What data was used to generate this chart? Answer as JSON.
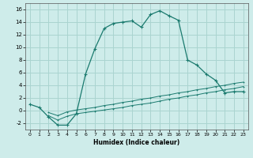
{
  "title": "",
  "xlabel": "Humidex (Indice chaleur)",
  "background_color": "#ceecea",
  "grid_color": "#aad4d0",
  "line_color": "#1a7a6e",
  "xlim": [
    -0.5,
    23.5
  ],
  "ylim": [
    -3,
    17
  ],
  "xticks": [
    0,
    1,
    2,
    3,
    4,
    5,
    6,
    7,
    8,
    9,
    10,
    11,
    12,
    13,
    14,
    15,
    16,
    17,
    18,
    19,
    20,
    21,
    22,
    23
  ],
  "yticks": [
    -2,
    0,
    2,
    4,
    6,
    8,
    10,
    12,
    14,
    16
  ],
  "curve1_x": [
    0,
    1,
    2,
    3,
    4,
    5,
    6,
    7,
    8,
    9,
    10,
    11,
    12,
    13,
    14,
    15,
    16,
    17,
    18,
    19,
    20,
    21,
    22,
    23
  ],
  "curve1_y": [
    1.0,
    0.5,
    -1.0,
    -2.3,
    -2.3,
    -0.5,
    5.8,
    9.8,
    13.0,
    13.8,
    14.0,
    14.2,
    13.2,
    15.2,
    15.8,
    15.0,
    14.3,
    8.0,
    7.2,
    5.8,
    4.8,
    2.8,
    3.0,
    3.0
  ],
  "curve2_x": [
    2,
    3,
    4,
    5,
    6,
    7,
    8,
    9,
    10,
    11,
    12,
    13,
    14,
    15,
    16,
    17,
    18,
    19,
    20,
    21,
    22,
    23
  ],
  "curve2_y": [
    -0.3,
    -0.8,
    -0.2,
    0.1,
    0.3,
    0.5,
    0.8,
    1.0,
    1.3,
    1.5,
    1.8,
    2.0,
    2.3,
    2.5,
    2.8,
    3.0,
    3.3,
    3.5,
    3.8,
    4.0,
    4.3,
    4.5
  ],
  "curve3_x": [
    2,
    3,
    4,
    5,
    6,
    7,
    8,
    9,
    10,
    11,
    12,
    13,
    14,
    15,
    16,
    17,
    18,
    19,
    20,
    21,
    22,
    23
  ],
  "curve3_y": [
    -0.8,
    -1.5,
    -0.9,
    -0.5,
    -0.3,
    -0.1,
    0.1,
    0.3,
    0.5,
    0.8,
    1.0,
    1.2,
    1.5,
    1.8,
    2.0,
    2.3,
    2.5,
    2.8,
    3.0,
    3.3,
    3.5,
    3.8
  ]
}
